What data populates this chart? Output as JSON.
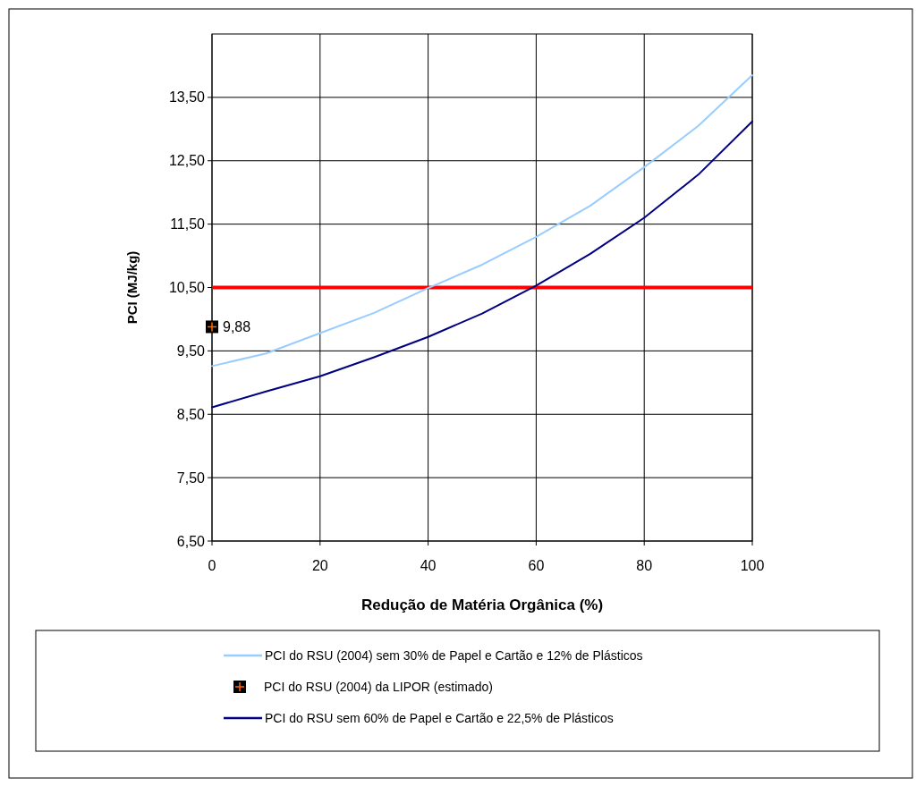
{
  "chart_data": {
    "type": "line",
    "xlabel": "Redução de Matéria Orgânica (%)",
    "ylabel": "PCI (MJ/kg)",
    "xlim": [
      0,
      100
    ],
    "xticks": [
      0,
      20,
      40,
      60,
      80,
      100
    ],
    "ylim": [
      6.5,
      14.5
    ],
    "yticks": [
      {
        "value": 6.5,
        "label": "6,50"
      },
      {
        "value": 7.5,
        "label": "7,50"
      },
      {
        "value": 8.5,
        "label": "8,50"
      },
      {
        "value": 9.5,
        "label": "9,50"
      },
      {
        "value": 10.5,
        "label": "10,50"
      },
      {
        "value": 11.5,
        "label": "11,50"
      },
      {
        "value": 12.5,
        "label": "12,50"
      },
      {
        "value": 13.5,
        "label": "13,50"
      }
    ],
    "grid": true,
    "legend": "bottom",
    "marker": "none",
    "line_style": "solid",
    "series": [
      {
        "name": "PCI do RSU (2004) sem 30% de Papel e Cartão e 12% de Plásticos",
        "color": "#99ccff",
        "x": [
          0,
          10,
          20,
          30,
          40,
          50,
          60,
          70,
          80,
          90,
          100
        ],
        "values": [
          9.26,
          9.46,
          9.78,
          10.1,
          10.49,
          10.86,
          11.3,
          11.79,
          12.4,
          13.05,
          13.85
        ]
      },
      {
        "name": "PCI do RSU (2004) da LIPOR (estimado)",
        "type": "scatter",
        "marker": "square",
        "color": "#000000",
        "x": [
          0
        ],
        "values": [
          9.88
        ],
        "value_labels": [
          "9,88"
        ]
      },
      {
        "name": "PCI do RSU sem 60% de Papel e Cartão e 22,5% de Plásticos",
        "color": "#000080",
        "x": [
          0,
          10,
          20,
          30,
          40,
          50,
          60,
          70,
          80,
          90,
          100
        ],
        "values": [
          8.61,
          8.86,
          9.1,
          9.4,
          9.72,
          10.09,
          10.53,
          11.03,
          11.6,
          12.28,
          13.12
        ]
      }
    ],
    "ref_lines": [
      {
        "axis": "y",
        "value": 10.5,
        "color": "#ff0000"
      }
    ]
  }
}
